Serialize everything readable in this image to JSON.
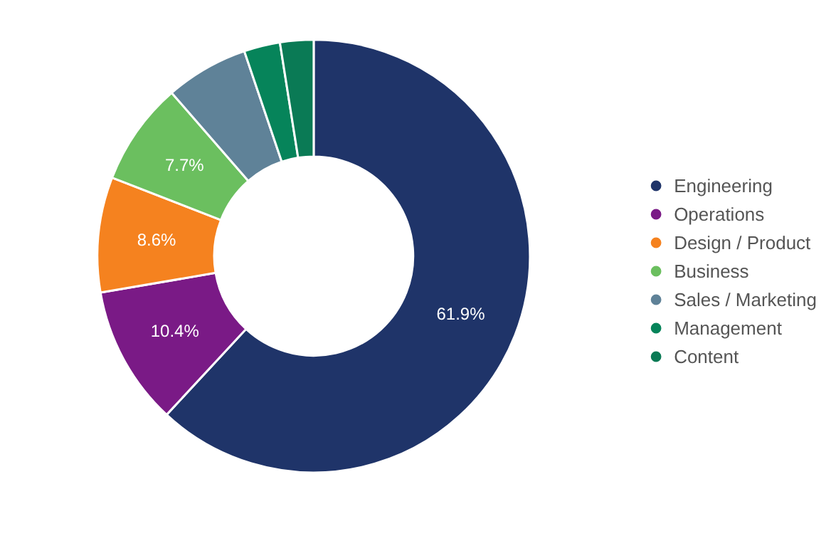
{
  "chart_data": {
    "type": "donut",
    "categories": [
      "Engineering",
      "Operations",
      "Design / Product",
      "Business",
      "Sales / Marketing",
      "Management",
      "Content"
    ],
    "values": [
      61.9,
      10.4,
      8.6,
      7.7,
      6.2,
      2.7,
      2.5
    ],
    "colors": [
      "#1f3469",
      "#7a1a86",
      "#f5821f",
      "#6bbf5f",
      "#5f8298",
      "#06845a",
      "#0a7a55"
    ],
    "value_labels": [
      "61.9%",
      "10.4%",
      "8.6%",
      "7.7%",
      null,
      null,
      null
    ],
    "legend": "right"
  }
}
